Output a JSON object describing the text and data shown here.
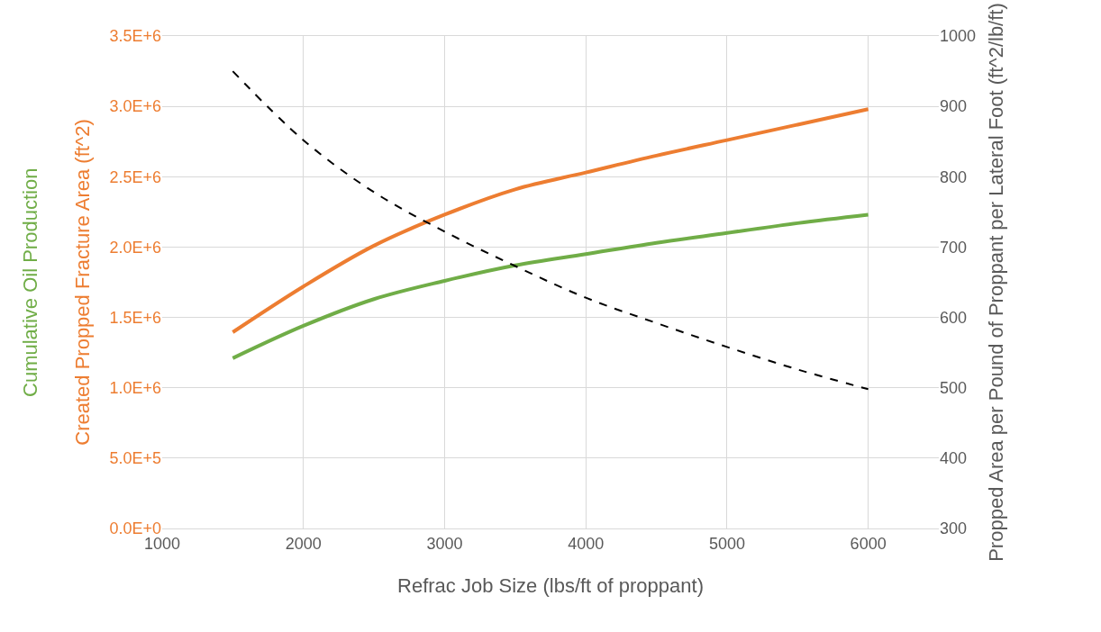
{
  "chart_data": {
    "type": "line",
    "xlabel": "Refrac Job Size (lbs/ft of proppant)",
    "ylabel": "Created Propped Fracture Area (ft^2)",
    "y2label": "Propped Area per Pound of Proppant per Lateral Foot (ft^2/lb/ft)",
    "annotations": [
      "Cumulative Oil Production"
    ],
    "x": [
      1500,
      2000,
      2500,
      3000,
      3500,
      4000,
      4500,
      5000,
      5500,
      6000
    ],
    "series": [
      {
        "color": "#70ad47",
        "values": [
          1210000,
          1440000,
          1630000,
          1760000,
          1870000,
          1950000,
          2030000,
          2100000,
          2170000,
          2230000
        ]
      },
      {
        "color": "#ed7d31",
        "values": [
          1395000,
          1720000,
          2010000,
          2230000,
          2410000,
          2530000,
          2650000,
          2760000,
          2870000,
          2980000
        ]
      },
      {
        "color": "#000000",
        "axis": "y2",
        "line_style": "dashed",
        "values": [
          950,
          852,
          778,
          722,
          673,
          628,
          592,
          558,
          526,
          498
        ]
      }
    ],
    "xlim": [
      1000,
      6500
    ],
    "xticks": [
      1000,
      2000,
      3000,
      4000,
      5000,
      6000
    ],
    "ylim": [
      0,
      3500000
    ],
    "yticks": [
      {
        "value": 0,
        "label": "0.0E+0"
      },
      {
        "value": 500000,
        "label": "5.0E+5"
      },
      {
        "value": 1000000,
        "label": "1.0E+6"
      },
      {
        "value": 1500000,
        "label": "1.5E+6"
      },
      {
        "value": 2000000,
        "label": "2.0E+6"
      },
      {
        "value": 2500000,
        "label": "2.5E+6"
      },
      {
        "value": 3000000,
        "label": "3.0E+6"
      },
      {
        "value": 3500000,
        "label": "3.5E+6"
      }
    ],
    "y2lim": [
      300,
      1000
    ],
    "y2ticks": [
      300,
      400,
      500,
      600,
      700,
      800,
      900,
      1000
    ],
    "grid": true,
    "legend": false,
    "marker": "none"
  }
}
